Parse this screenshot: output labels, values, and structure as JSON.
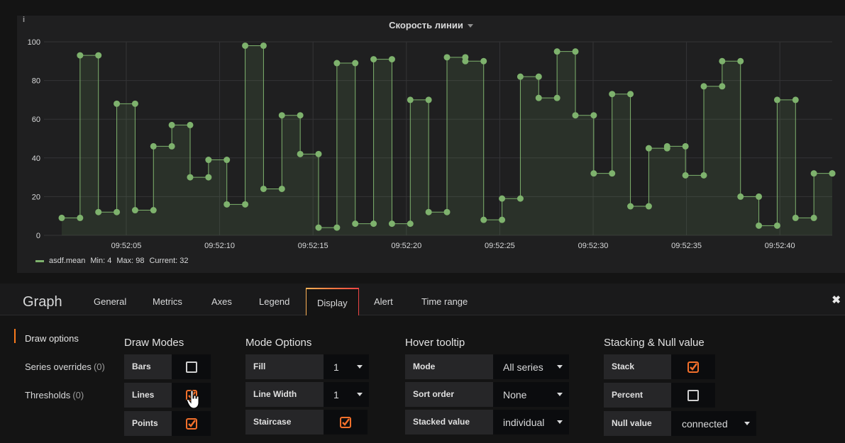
{
  "panel": {
    "title": "Скорость линии",
    "info": "i",
    "legend": {
      "name": "asdf.mean",
      "min": "Min: 4",
      "max": "Max: 98",
      "current": "Current: 32"
    }
  },
  "chart_data": {
    "type": "line",
    "title": "Скорость линии",
    "xlabel": "",
    "ylabel": "",
    "ylim": [
      0,
      100
    ],
    "yticks": [
      "0",
      "20",
      "40",
      "60",
      "80",
      "100"
    ],
    "xticks": [
      "09:52:05",
      "09:52:10",
      "09:52:15",
      "09:52:20",
      "09:52:25",
      "09:52:30",
      "09:52:35",
      "09:52:40"
    ],
    "staircase": true,
    "fill": 1,
    "points": true,
    "grid": true,
    "color": "#7eb26d",
    "series": [
      {
        "name": "asdf.mean",
        "x": [
          0,
          1,
          2,
          3,
          4,
          5,
          6,
          7,
          8,
          9,
          10,
          11,
          12,
          13,
          14,
          15,
          16,
          17,
          18,
          19,
          20,
          21,
          22,
          23,
          24,
          25,
          26,
          27,
          28,
          29,
          30,
          31,
          32,
          33,
          34,
          35,
          36,
          37,
          38,
          39,
          40,
          41,
          42
        ],
        "values": [
          9,
          93,
          12,
          68,
          13,
          46,
          57,
          30,
          39,
          16,
          98,
          24,
          62,
          42,
          4,
          89,
          6,
          91,
          6,
          70,
          12,
          92,
          90,
          8,
          19,
          82,
          71,
          95,
          62,
          32,
          73,
          15,
          45,
          46,
          31,
          77,
          90,
          20,
          5,
          70,
          9,
          32,
          32
        ]
      }
    ]
  },
  "editor": {
    "title": "Graph",
    "tabs": [
      "General",
      "Metrics",
      "Axes",
      "Legend",
      "Display",
      "Alert",
      "Time range"
    ],
    "active_tab": "Display",
    "close": "✖",
    "side_nav": [
      {
        "label": "Draw options",
        "count": ""
      },
      {
        "label": "Series overrides",
        "count": "(0)"
      },
      {
        "label": "Thresholds",
        "count": "(0)"
      }
    ],
    "draw_modes": {
      "title": "Draw Modes",
      "bars": {
        "label": "Bars",
        "checked": false
      },
      "lines": {
        "label": "Lines",
        "checked": true
      },
      "points": {
        "label": "Points",
        "checked": true
      }
    },
    "mode_options": {
      "title": "Mode Options",
      "fill": {
        "label": "Fill",
        "value": "1"
      },
      "line_width": {
        "label": "Line Width",
        "value": "1"
      },
      "staircase": {
        "label": "Staircase",
        "checked": true
      }
    },
    "hover_tooltip": {
      "title": "Hover tooltip",
      "mode": {
        "label": "Mode",
        "value": "All series"
      },
      "sort_order": {
        "label": "Sort order",
        "value": "None"
      },
      "stacked_value": {
        "label": "Stacked value",
        "value": "individual"
      }
    },
    "stacking": {
      "title": "Stacking & Null value",
      "stack": {
        "label": "Stack",
        "checked": true
      },
      "percent": {
        "label": "Percent",
        "checked": false
      },
      "null_value": {
        "label": "Null value",
        "value": "connected"
      }
    }
  }
}
